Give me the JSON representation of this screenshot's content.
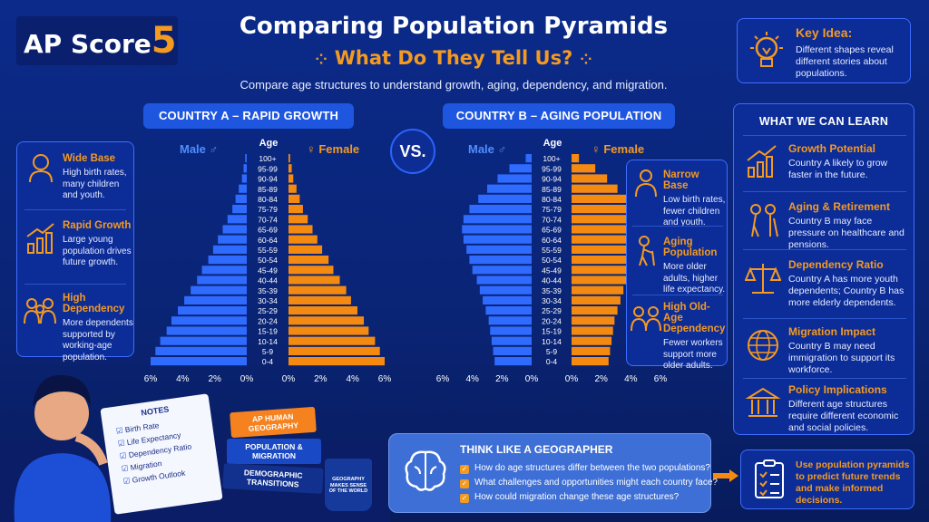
{
  "header": {
    "logo_text": "AP Score",
    "logo_number": "5",
    "title": "Comparing Population Pyramids",
    "subtitle": "What Do They Tell Us?",
    "tagline": "Compare age structures to understand growth, aging, dependency, and migration."
  },
  "key_idea": {
    "title": "Key Idea:",
    "text": "Different shapes reveal different stories about populations."
  },
  "vs_label": "VS.",
  "country_a": {
    "header": "COUNTRY A – RAPID GROWTH",
    "male_label": "Male ♂",
    "female_label": "♀ Female",
    "age_label": "Age",
    "x_ticks_left": [
      "6%",
      "4%",
      "2%",
      "0%"
    ],
    "x_ticks_right": [
      "0%",
      "2%",
      "4%",
      "6%"
    ],
    "features": [
      {
        "title": "Wide Base",
        "text": "High birth rates, many children and youth."
      },
      {
        "title": "Rapid Growth",
        "text": "Large young population drives future growth."
      },
      {
        "title": "High Dependency",
        "text": "More dependents supported by working-age population."
      }
    ]
  },
  "country_b": {
    "header": "COUNTRY B – AGING POPULATION",
    "male_label": "Male ♂",
    "female_label": "♀ Female",
    "age_label": "Age",
    "x_ticks_left": [
      "6%",
      "4%",
      "2%",
      "0%"
    ],
    "x_ticks_right": [
      "0%",
      "2%",
      "4%",
      "6%"
    ],
    "features": [
      {
        "title": "Narrow Base",
        "text": "Low birth rates, fewer children and youth."
      },
      {
        "title": "Aging Population",
        "text": "More older adults, higher life expectancy."
      },
      {
        "title": "High Old-Age Dependency",
        "text": "Fewer workers support more older adults."
      }
    ]
  },
  "chart_data": [
    {
      "type": "bar",
      "title": "COUNTRY A – RAPID GROWTH",
      "categories": [
        "100+",
        "95-99",
        "90-94",
        "85-89",
        "80-84",
        "75-79",
        "70-74",
        "65-69",
        "60-64",
        "55-59",
        "50-54",
        "45-49",
        "40-44",
        "35-39",
        "30-34",
        "25-29",
        "20-24",
        "15-19",
        "10-14",
        "5-9",
        "0-4"
      ],
      "series": [
        {
          "name": "Male",
          "values": [
            0.1,
            0.2,
            0.3,
            0.5,
            0.7,
            0.9,
            1.2,
            1.5,
            1.8,
            2.1,
            2.4,
            2.8,
            3.1,
            3.5,
            3.9,
            4.3,
            4.7,
            5.0,
            5.4,
            5.7,
            6.0
          ]
        },
        {
          "name": "Female",
          "values": [
            0.1,
            0.2,
            0.3,
            0.5,
            0.7,
            0.9,
            1.2,
            1.5,
            1.8,
            2.1,
            2.5,
            2.8,
            3.2,
            3.6,
            3.9,
            4.3,
            4.7,
            5.0,
            5.4,
            5.7,
            6.0
          ]
        }
      ],
      "xlim": [
        -6,
        6
      ]
    },
    {
      "type": "bar",
      "title": "COUNTRY B – AGING POPULATION",
      "categories": [
        "100+",
        "95-99",
        "90-94",
        "85-89",
        "80-84",
        "75-79",
        "70-74",
        "65-69",
        "60-64",
        "55-59",
        "50-54",
        "45-49",
        "40-44",
        "35-39",
        "30-34",
        "25-29",
        "20-24",
        "15-19",
        "10-14",
        "5-9",
        "0-4"
      ],
      "series": [
        {
          "name": "Male",
          "values": [
            0.4,
            1.5,
            2.3,
            3.0,
            3.6,
            4.2,
            4.6,
            4.7,
            4.6,
            4.4,
            4.2,
            4.0,
            3.7,
            3.5,
            3.3,
            3.1,
            2.9,
            2.8,
            2.7,
            2.6,
            2.5
          ]
        },
        {
          "name": "Female",
          "values": [
            0.5,
            1.6,
            2.4,
            3.1,
            3.7,
            4.3,
            4.7,
            4.8,
            4.7,
            4.5,
            4.3,
            4.0,
            3.8,
            3.5,
            3.3,
            3.1,
            2.9,
            2.8,
            2.7,
            2.6,
            2.5
          ]
        }
      ],
      "xlim": [
        -6,
        6
      ]
    }
  ],
  "learn": {
    "title": "WHAT WE CAN LEARN",
    "items": [
      {
        "title": "Growth Potential",
        "text": "Country A likely to grow faster in the future."
      },
      {
        "title": "Aging & Retirement",
        "text": "Country B may face pressure on healthcare and pensions."
      },
      {
        "title": "Dependency Ratio",
        "text": "Country A has more youth dependents; Country B has more elderly dependents."
      },
      {
        "title": "Migration Impact",
        "text": "Country B may need immigration to support its workforce."
      },
      {
        "title": "Policy Implications",
        "text": "Different age structures require different economic and social policies."
      }
    ]
  },
  "think": {
    "title": "THINK LIKE A GEOGRAPHER",
    "questions": [
      "How do age structures differ between the two populations?",
      "What challenges and opportunities might each country face?",
      "How could migration change these age structures?"
    ]
  },
  "policy_box": {
    "text": "Use population pyramids to predict future trends and make informed decisions."
  },
  "notes": {
    "title": "NOTES",
    "items": [
      "Birth Rate",
      "Life Expectancy",
      "Dependency Ratio",
      "Migration",
      "Growth Outlook"
    ]
  },
  "books": [
    "AP HUMAN GEOGRAPHY",
    "POPULATION & MIGRATION",
    "DEMOGRAPHIC TRANSITIONS"
  ],
  "mug_text": "GEOGRAPHY MAKES SENSE OF THE WORLD",
  "colors": {
    "male": "#2f6bff",
    "female": "#f58a10",
    "accent": "#f39a21",
    "background": "#0b2a8a"
  }
}
